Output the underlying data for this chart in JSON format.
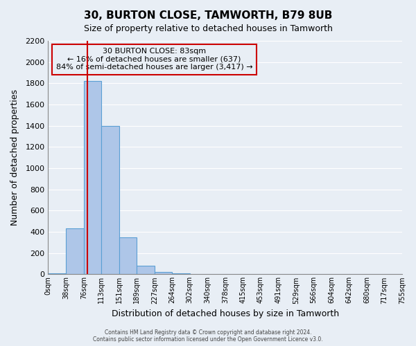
{
  "title": "30, BURTON CLOSE, TAMWORTH, B79 8UB",
  "subtitle": "Size of property relative to detached houses in Tamworth",
  "xlabel": "Distribution of detached houses by size in Tamworth",
  "ylabel": "Number of detached properties",
  "bar_values": [
    10,
    430,
    1820,
    1400,
    350,
    80,
    25,
    10,
    0,
    0,
    0,
    0,
    0,
    0,
    0,
    0,
    0,
    0,
    0,
    0
  ],
  "bin_edges": [
    0,
    38,
    76,
    113,
    151,
    189,
    227,
    264,
    302,
    340,
    378,
    415,
    453,
    491,
    529,
    566,
    604,
    642,
    680,
    717,
    755
  ],
  "tick_labels": [
    "0sqm",
    "38sqm",
    "76sqm",
    "113sqm",
    "151sqm",
    "189sqm",
    "227sqm",
    "264sqm",
    "302sqm",
    "340sqm",
    "378sqm",
    "415sqm",
    "453sqm",
    "491sqm",
    "529sqm",
    "566sqm",
    "604sqm",
    "642sqm",
    "680sqm",
    "717sqm",
    "755sqm"
  ],
  "bar_color": "#aec6e8",
  "bar_edgecolor": "#5a9fd4",
  "vline_x": 83,
  "vline_color": "#cc0000",
  "annotation_box_title": "30 BURTON CLOSE: 83sqm",
  "annotation_line1": "← 16% of detached houses are smaller (637)",
  "annotation_line2": "84% of semi-detached houses are larger (3,417) →",
  "annotation_box_edgecolor": "#cc0000",
  "ylim": [
    0,
    2200
  ],
  "yticks": [
    0,
    200,
    400,
    600,
    800,
    1000,
    1200,
    1400,
    1600,
    1800,
    2000,
    2200
  ],
  "bg_color": "#e8eef5",
  "grid_color": "#ffffff",
  "footer1": "Contains HM Land Registry data © Crown copyright and database right 2024.",
  "footer2": "Contains public sector information licensed under the Open Government Licence v3.0."
}
